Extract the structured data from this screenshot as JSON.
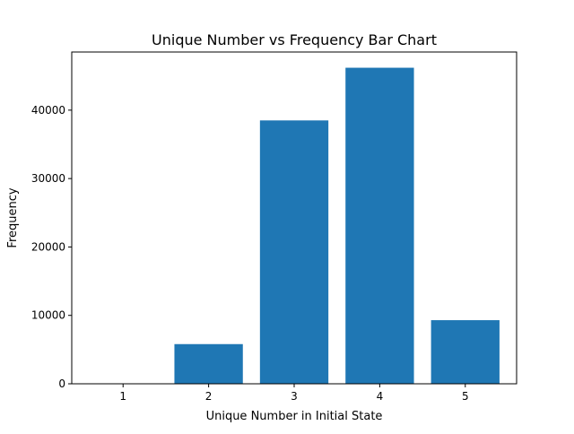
{
  "chart_data": {
    "type": "bar",
    "title": "Unique Number vs Frequency Bar Chart",
    "xlabel": "Unique Number in Initial State",
    "ylabel": "Frequency",
    "categories": [
      "1",
      "2",
      "3",
      "4",
      "5"
    ],
    "values": [
      0,
      5800,
      38500,
      46200,
      9300
    ],
    "ylim": [
      0,
      48500
    ],
    "yticks": [
      0,
      10000,
      20000,
      30000,
      40000
    ],
    "ytick_labels": [
      "0",
      "10000",
      "20000",
      "30000",
      "40000"
    ],
    "grid": false,
    "legend": "none",
    "bar_color": "#1f77b4"
  }
}
